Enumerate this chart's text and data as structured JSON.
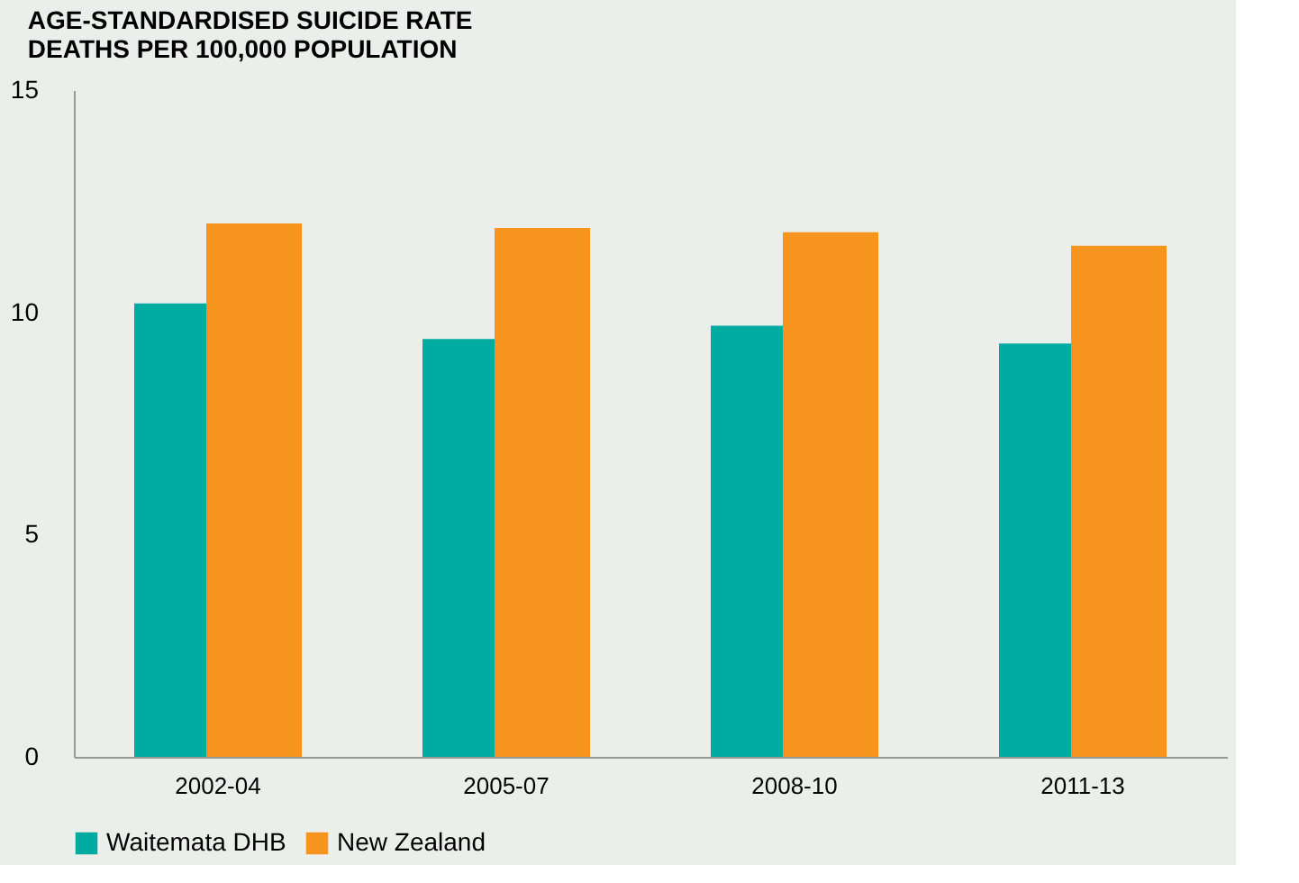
{
  "chart_data": {
    "type": "bar",
    "title": [
      "AGE-STANDARDISED SUICIDE RATE",
      "DEATHS PER 100,000 POPULATION"
    ],
    "categories": [
      "2002-04",
      "2005-07",
      "2008-10",
      "2011-13"
    ],
    "series": [
      {
        "name": "Waitemata DHB",
        "color": "#00aba1",
        "values": [
          10.2,
          9.4,
          9.7,
          9.3
        ]
      },
      {
        "name": "New Zealand",
        "color": "#f7941e",
        "values": [
          12.0,
          11.9,
          11.8,
          11.5
        ]
      }
    ],
    "ylim": [
      0,
      15
    ],
    "yticks": [
      0,
      5,
      10,
      15
    ],
    "grid": false,
    "legend": "bottom"
  }
}
